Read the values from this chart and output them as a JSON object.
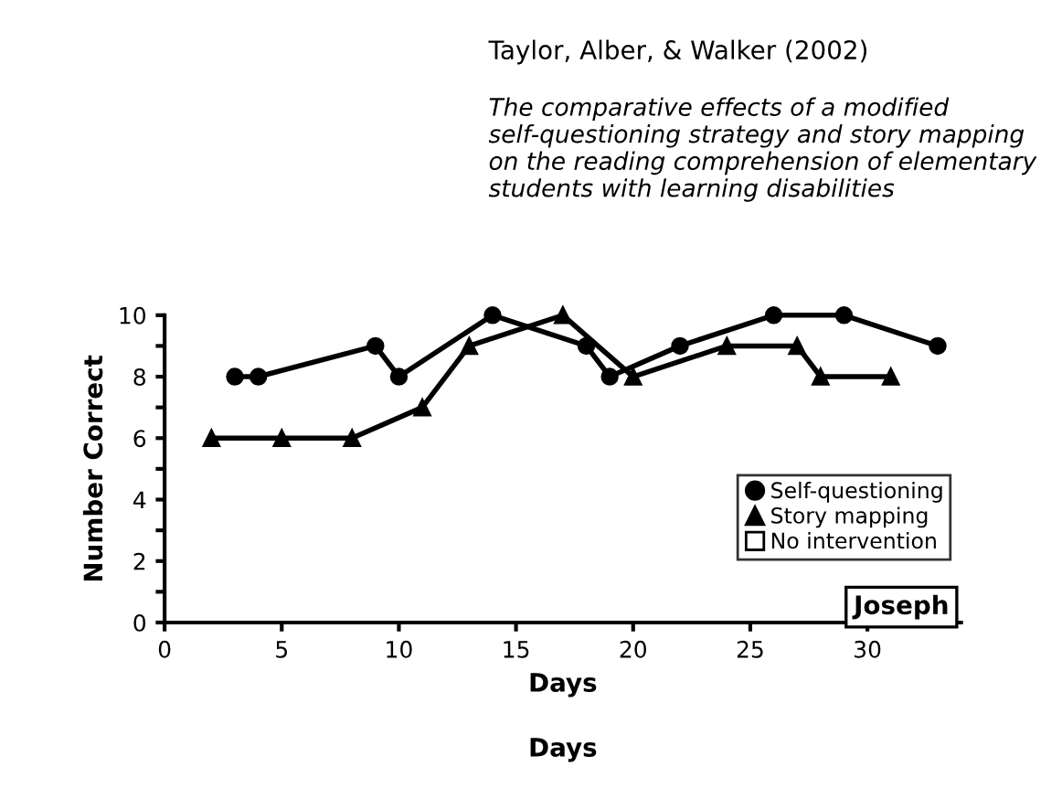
{
  "chart_data": {
    "type": "line",
    "title": "Taylor, Alber, & Walker (2002)",
    "subtitle": "The comparative effects of a modified self-questioning strategy and story mapping on the reading comprehension of elementary students with learning disabilities",
    "xlabel": "Days",
    "ylabel": "Number Correct",
    "annotations": [
      "Joseph",
      "Days"
    ],
    "series": [
      {
        "name": "Self-questioning",
        "color": "#000000",
        "marker": "circle",
        "x": [
          3,
          4,
          9,
          10,
          14,
          18,
          19,
          22,
          26,
          29,
          33
        ],
        "values": [
          8,
          8,
          9,
          8,
          10,
          9,
          8,
          9,
          10,
          10,
          9
        ]
      },
      {
        "name": "Story mapping",
        "color": "#000000",
        "marker": "triangle",
        "x": [
          2,
          5,
          8,
          11,
          13,
          17,
          20,
          24,
          27,
          28,
          31
        ],
        "values": [
          6,
          6,
          6,
          7,
          9,
          10,
          8,
          9,
          9,
          8,
          8
        ]
      },
      {
        "name": "No intervention",
        "color": "#000000",
        "marker": "square"
      }
    ],
    "xlim": [
      0,
      34
    ],
    "xticks": [
      0,
      5,
      10,
      15,
      20,
      25,
      30
    ],
    "ylim": [
      0,
      10
    ],
    "yticks": [
      0,
      {
        "value": 1,
        "label": null
      },
      2,
      {
        "value": 3,
        "label": null
      },
      4,
      {
        "value": 5,
        "label": null
      },
      6,
      {
        "value": 7,
        "label": null
      },
      8,
      {
        "value": 9,
        "label": null
      },
      10
    ],
    "legend": "lower right",
    "grid": false,
    "line_style": "solid"
  }
}
